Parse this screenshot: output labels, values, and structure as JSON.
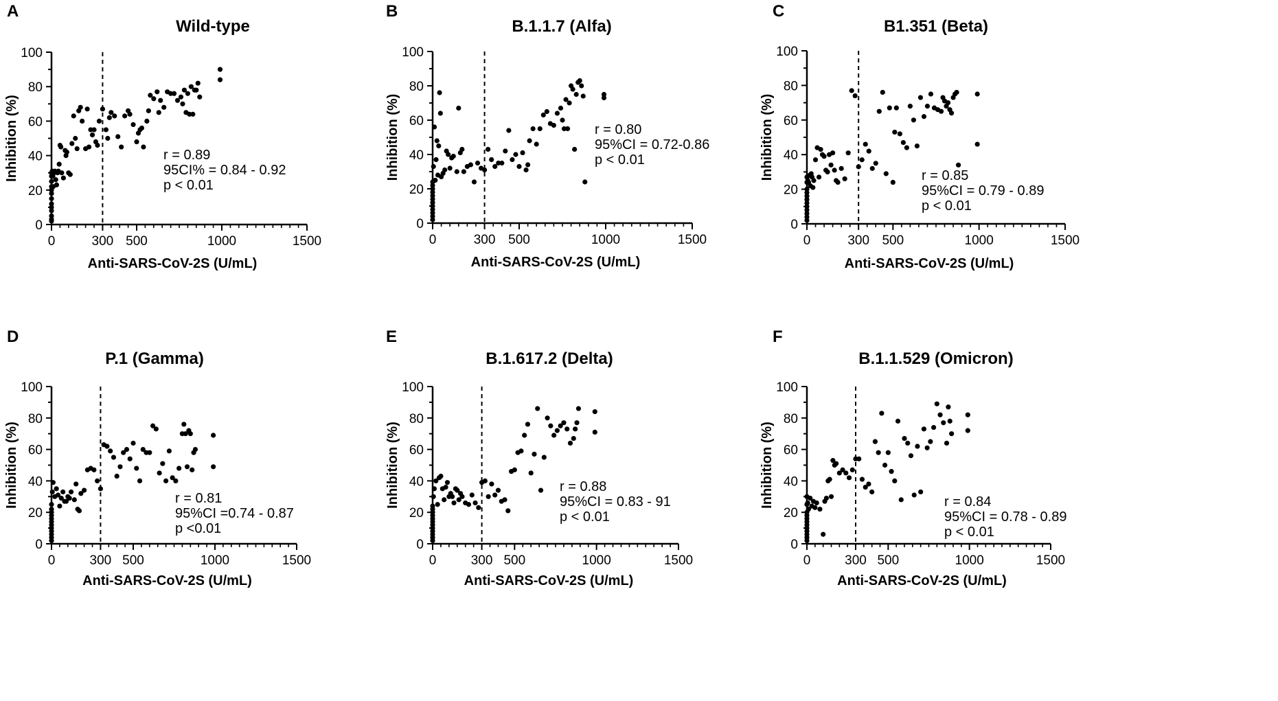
{
  "chart_data": [
    {
      "panel": "A",
      "type": "scatter",
      "title": "Wild-type",
      "xlabel": "Anti-SARS-CoV-2S (U/mL)",
      "ylabel": "Inhibition (%)",
      "xlim": [
        0,
        1500
      ],
      "ylim": [
        0,
        100
      ],
      "xticks": [
        0,
        300,
        500,
        1000,
        1500
      ],
      "yticks": [
        0,
        20,
        40,
        60,
        80,
        100
      ],
      "cutoff": 300,
      "stats": [
        "r = 0.89",
        "95CI% = 0.84 - 0.92",
        "p < 0.01"
      ],
      "x": [
        0,
        0,
        0,
        0,
        0,
        0,
        0,
        0,
        0,
        0,
        0,
        0,
        0,
        5,
        8,
        10,
        15,
        20,
        25,
        30,
        35,
        40,
        45,
        50,
        55,
        60,
        70,
        80,
        85,
        90,
        100,
        110,
        120,
        130,
        140,
        150,
        160,
        170,
        180,
        200,
        210,
        220,
        230,
        240,
        250,
        260,
        270,
        280,
        300,
        320,
        330,
        340,
        350,
        370,
        390,
        410,
        430,
        450,
        460,
        480,
        500,
        510,
        520,
        530,
        540,
        560,
        570,
        580,
        600,
        620,
        630,
        640,
        660,
        680,
        700,
        720,
        740,
        760,
        770,
        780,
        790,
        800,
        810,
        820,
        830,
        840,
        850,
        860,
        870,
        990,
        990
      ],
      "y": [
        2,
        5,
        8,
        10,
        12,
        15,
        18,
        20,
        22,
        25,
        28,
        30,
        3,
        31,
        28,
        22,
        30,
        31,
        26,
        23,
        30,
        31,
        35,
        46,
        45,
        30,
        27,
        43,
        40,
        42,
        30,
        29,
        47,
        63,
        50,
        44,
        66,
        68,
        60,
        44,
        67,
        45,
        55,
        52,
        55,
        48,
        46,
        60,
        67,
        55,
        50,
        62,
        65,
        63,
        51,
        45,
        63,
        66,
        64,
        58,
        48,
        53,
        55,
        56,
        45,
        60,
        66,
        75,
        73,
        77,
        65,
        72,
        68,
        77,
        76,
        76,
        72,
        74,
        70,
        78,
        65,
        76,
        64,
        80,
        64,
        78,
        78,
        82,
        74,
        84,
        90
      ],
      "legend": []
    },
    {
      "panel": "B",
      "type": "scatter",
      "title": "B.1.1.7 (Alfa)",
      "xlabel": "Anti-SARS-CoV-2S (U/mL)",
      "ylabel": "Inhibition (%)",
      "xlim": [
        0,
        1500
      ],
      "ylim": [
        0,
        100
      ],
      "xticks": [
        0,
        300,
        500,
        1000,
        1500
      ],
      "yticks": [
        0,
        20,
        40,
        60,
        80,
        100
      ],
      "cutoff": 300,
      "stats": [
        "r = 0.80",
        "95%CI = 0.72-0.86",
        "p < 0.01"
      ],
      "x": [
        0,
        0,
        0,
        0,
        0,
        0,
        0,
        0,
        0,
        0,
        0,
        0,
        5,
        10,
        15,
        20,
        25,
        30,
        35,
        40,
        45,
        50,
        60,
        70,
        80,
        90,
        100,
        110,
        120,
        140,
        150,
        160,
        170,
        180,
        200,
        220,
        240,
        260,
        280,
        300,
        320,
        340,
        360,
        380,
        400,
        420,
        440,
        460,
        480,
        500,
        520,
        540,
        550,
        560,
        580,
        600,
        620,
        640,
        660,
        680,
        700,
        720,
        740,
        750,
        760,
        770,
        780,
        790,
        800,
        810,
        820,
        830,
        840,
        850,
        860,
        870,
        880,
        990,
        990
      ],
      "y": [
        2,
        4,
        6,
        8,
        10,
        12,
        14,
        16,
        18,
        20,
        22,
        24,
        33,
        56,
        25,
        37,
        48,
        28,
        45,
        76,
        64,
        27,
        29,
        31,
        42,
        40,
        32,
        38,
        39,
        30,
        67,
        41,
        43,
        30,
        33,
        34,
        24,
        35,
        32,
        31,
        43,
        37,
        33,
        35,
        35,
        42,
        54,
        37,
        40,
        33,
        41,
        31,
        34,
        48,
        55,
        46,
        55,
        63,
        65,
        58,
        57,
        64,
        67,
        60,
        55,
        72,
        55,
        70,
        80,
        78,
        43,
        75,
        82,
        83,
        80,
        74,
        24,
        73,
        75
      ],
      "legend": []
    },
    {
      "panel": "C",
      "type": "scatter",
      "title": "B1.351 (Beta)",
      "xlabel": "Anti-SARS-CoV-2S (U/mL)",
      "ylabel": "Inhibition (%)",
      "xlim": [
        0,
        1500
      ],
      "ylim": [
        0,
        100
      ],
      "xticks": [
        0,
        300,
        500,
        1000,
        1500
      ],
      "yticks": [
        0,
        20,
        40,
        60,
        80,
        100
      ],
      "cutoff": 300,
      "stats": [
        "r = 0.85",
        "95%CI = 0.79 - 0.89",
        "p < 0.01"
      ],
      "x": [
        0,
        0,
        0,
        0,
        0,
        0,
        0,
        0,
        0,
        0,
        0,
        0,
        5,
        10,
        15,
        20,
        25,
        30,
        35,
        40,
        50,
        60,
        70,
        80,
        90,
        100,
        110,
        120,
        130,
        140,
        150,
        160,
        170,
        180,
        200,
        220,
        240,
        260,
        280,
        300,
        320,
        340,
        360,
        380,
        400,
        420,
        440,
        460,
        480,
        500,
        510,
        520,
        540,
        560,
        580,
        600,
        620,
        640,
        660,
        680,
        700,
        720,
        740,
        760,
        780,
        790,
        800,
        810,
        820,
        830,
        840,
        850,
        860,
        870,
        880,
        990,
        990
      ],
      "y": [
        2,
        4,
        6,
        8,
        10,
        12,
        14,
        16,
        18,
        20,
        24,
        27,
        25,
        24,
        28,
        22,
        29,
        27,
        21,
        25,
        37,
        44,
        27,
        43,
        40,
        39,
        31,
        30,
        40,
        34,
        41,
        31,
        25,
        24,
        32,
        26,
        41,
        77,
        74,
        33,
        37,
        46,
        42,
        32,
        35,
        65,
        76,
        29,
        67,
        24,
        53,
        67,
        52,
        47,
        44,
        68,
        60,
        45,
        73,
        62,
        68,
        75,
        67,
        66,
        65,
        73,
        71,
        68,
        70,
        66,
        64,
        73,
        75,
        76,
        34,
        75,
        46
      ],
      "legend": []
    },
    {
      "panel": "D",
      "type": "scatter",
      "title": "P.1 (Gamma)",
      "xlabel": "Anti-SARS-CoV-2S (U/mL)",
      "ylabel": "Inhibition (%)",
      "xlim": [
        0,
        1500
      ],
      "ylim": [
        0,
        100
      ],
      "xticks": [
        0,
        300,
        500,
        1000,
        1500
      ],
      "yticks": [
        0,
        20,
        40,
        60,
        80,
        100
      ],
      "cutoff": 300,
      "stats": [
        "r = 0.81",
        "95%CI =0.74 - 0.87",
        "p <0.01"
      ],
      "x": [
        0,
        0,
        0,
        0,
        0,
        0,
        0,
        0,
        0,
        0,
        0,
        0,
        5,
        10,
        20,
        30,
        40,
        50,
        60,
        70,
        80,
        90,
        100,
        110,
        120,
        140,
        150,
        160,
        170,
        180,
        200,
        220,
        240,
        260,
        280,
        300,
        320,
        340,
        360,
        380,
        400,
        420,
        440,
        460,
        480,
        500,
        520,
        540,
        560,
        580,
        600,
        620,
        640,
        660,
        680,
        700,
        720,
        740,
        760,
        780,
        800,
        810,
        820,
        830,
        840,
        850,
        860,
        870,
        880,
        990,
        990
      ],
      "y": [
        2,
        4,
        6,
        8,
        10,
        12,
        14,
        16,
        18,
        20,
        22,
        25,
        33,
        39,
        30,
        35,
        31,
        24,
        29,
        33,
        27,
        27,
        30,
        29,
        33,
        28,
        38,
        22,
        21,
        32,
        34,
        47,
        48,
        47,
        40,
        35,
        63,
        62,
        59,
        55,
        43,
        49,
        58,
        60,
        54,
        64,
        48,
        40,
        60,
        58,
        58,
        75,
        73,
        45,
        51,
        40,
        59,
        42,
        40,
        48,
        70,
        76,
        70,
        49,
        72,
        70,
        47,
        58,
        60,
        69,
        49
      ],
      "legend": []
    },
    {
      "panel": "E",
      "type": "scatter",
      "title": "B.1.617.2 (Delta)",
      "xlabel": "Anti-SARS-CoV-2S (U/mL)",
      "ylabel": "Inhibition (%)",
      "xlim": [
        0,
        1500
      ],
      "ylim": [
        0,
        100
      ],
      "xticks": [
        0,
        300,
        500,
        1000,
        1500
      ],
      "yticks": [
        0,
        20,
        40,
        60,
        80,
        100
      ],
      "cutoff": 300,
      "stats": [
        "r = 0.88",
        "95%CI = 0.83 - 91",
        "p < 0.01"
      ],
      "x": [
        0,
        0,
        0,
        0,
        0,
        0,
        0,
        0,
        0,
        0,
        0,
        0,
        5,
        10,
        20,
        30,
        40,
        50,
        60,
        70,
        80,
        90,
        100,
        110,
        120,
        130,
        140,
        150,
        160,
        170,
        180,
        200,
        220,
        240,
        260,
        280,
        300,
        320,
        340,
        360,
        380,
        400,
        420,
        440,
        460,
        480,
        500,
        520,
        540,
        560,
        580,
        600,
        620,
        640,
        660,
        680,
        700,
        720,
        740,
        760,
        780,
        800,
        820,
        840,
        860,
        870,
        880,
        890,
        990,
        990
      ],
      "y": [
        2,
        4,
        6,
        8,
        10,
        12,
        14,
        16,
        18,
        20,
        22,
        24,
        30,
        35,
        40,
        25,
        42,
        43,
        35,
        28,
        36,
        39,
        30,
        32,
        30,
        26,
        35,
        34,
        28,
        32,
        30,
        26,
        25,
        31,
        26,
        23,
        39,
        40,
        30,
        38,
        31,
        34,
        27,
        28,
        21,
        46,
        47,
        58,
        59,
        69,
        76,
        45,
        57,
        86,
        34,
        55,
        80,
        75,
        69,
        72,
        75,
        77,
        73,
        64,
        67,
        73,
        77,
        86,
        84,
        71
      ],
      "legend": []
    },
    {
      "panel": "F",
      "type": "scatter",
      "title": "B.1.1.529 (Omicron)",
      "xlabel": "Anti-SARS-CoV-2S (U/mL)",
      "ylabel": "Inhibition (%)",
      "xlim": [
        0,
        1500
      ],
      "ylim": [
        0,
        100
      ],
      "xticks": [
        0,
        300,
        500,
        1000,
        1500
      ],
      "yticks": [
        0,
        20,
        40,
        60,
        80,
        100
      ],
      "cutoff": 300,
      "stats": [
        "r = 0.84",
        "95%CI = 0.78 - 0.89",
        "p < 0.01"
      ],
      "x": [
        0,
        0,
        0,
        0,
        0,
        0,
        0,
        0,
        0,
        0,
        0,
        0,
        5,
        10,
        20,
        30,
        40,
        50,
        60,
        80,
        100,
        110,
        120,
        130,
        140,
        150,
        160,
        170,
        180,
        200,
        220,
        240,
        260,
        280,
        300,
        320,
        340,
        360,
        380,
        400,
        420,
        440,
        460,
        480,
        500,
        520,
        540,
        560,
        580,
        600,
        620,
        640,
        660,
        680,
        700,
        720,
        740,
        760,
        780,
        800,
        820,
        840,
        860,
        870,
        880,
        890,
        990,
        990
      ],
      "y": [
        2,
        4,
        6,
        8,
        10,
        12,
        14,
        16,
        18,
        20,
        25,
        30,
        26,
        22,
        29,
        24,
        27,
        23,
        26,
        22,
        6,
        27,
        29,
        40,
        41,
        30,
        53,
        50,
        51,
        45,
        47,
        45,
        42,
        47,
        54,
        54,
        41,
        36,
        38,
        33,
        65,
        58,
        83,
        50,
        58,
        46,
        40,
        78,
        28,
        67,
        64,
        56,
        31,
        62,
        33,
        73,
        61,
        65,
        74,
        89,
        82,
        77,
        64,
        87,
        78,
        70,
        82,
        72
      ],
      "legend": []
    }
  ]
}
